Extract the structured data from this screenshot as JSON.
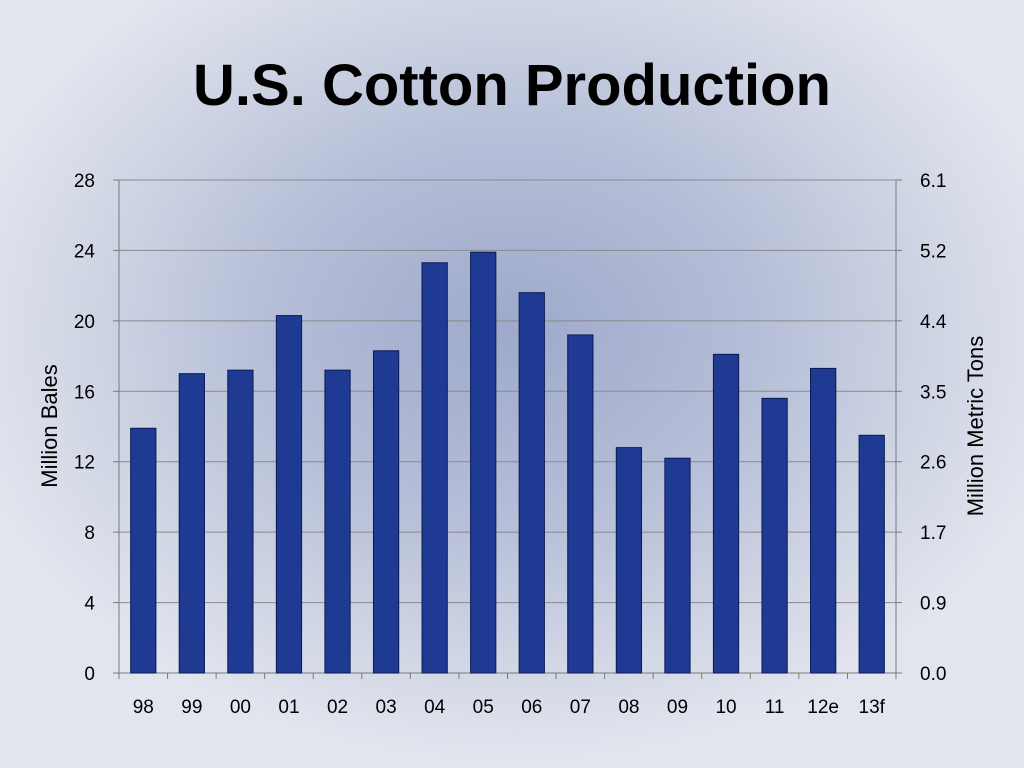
{
  "title": "U.S. Cotton Production",
  "chart_data": {
    "type": "bar",
    "title": "U.S. Cotton Production",
    "xlabel": "",
    "ylabel": "Million Bales",
    "y2label": "Million Metric Tons",
    "categories": [
      "98",
      "99",
      "00",
      "01",
      "02",
      "03",
      "04",
      "05",
      "06",
      "07",
      "08",
      "09",
      "10",
      "11",
      "12e",
      "13f"
    ],
    "series": [
      {
        "values": [
          13.9,
          17.0,
          17.2,
          20.3,
          17.2,
          18.3,
          23.3,
          23.9,
          21.6,
          19.2,
          12.8,
          12.2,
          18.1,
          15.6,
          17.3,
          13.5
        ]
      }
    ],
    "ylim": [
      0,
      28
    ],
    "yticks": [
      "0",
      "4",
      "8",
      "12",
      "16",
      "20",
      "24",
      "28"
    ],
    "y2ticks": [
      "0.0",
      "0.9",
      "1.7",
      "2.6",
      "3.5",
      "4.4",
      "5.2",
      "6.1"
    ],
    "grid": true,
    "bar_color": "#1f3a93",
    "bar_edge_color": "#0b1a55"
  }
}
